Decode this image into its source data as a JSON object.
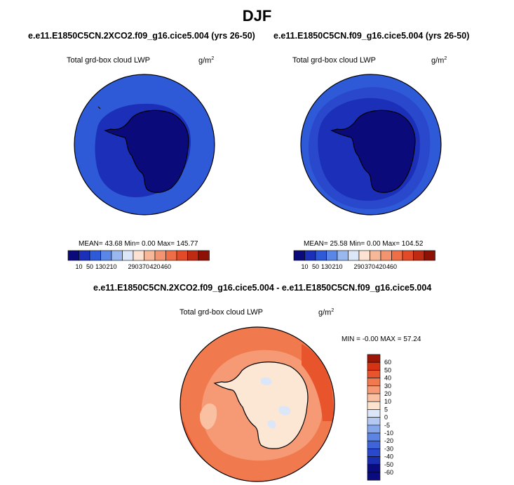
{
  "page": {
    "title": "DJF"
  },
  "colors": {
    "seq_palette": [
      "#0a0a7a",
      "#1c2fb8",
      "#2e5ad8",
      "#5a86e8",
      "#9ab8f0",
      "#dbe6f8",
      "#fbe2d2",
      "#f7b89a",
      "#f39470",
      "#ee6e48",
      "#e24a28",
      "#bf2a12",
      "#8e1106"
    ],
    "diff_palette": [
      "#0b0b80",
      "#1a2db0",
      "#2a48cc",
      "#3f64d8",
      "#5c84e2",
      "#86a6ea",
      "#b4c8f2",
      "#dbe6f8",
      "#fde2d0",
      "#f9c0a2",
      "#f59a74",
      "#f07a4e",
      "#e8542c",
      "#d43412",
      "#9c1608"
    ],
    "land": "#fbe6d6",
    "land_diff": "#fce6d4"
  },
  "chart_data": [
    {
      "type": "heatmap",
      "projection": "polar-stereographic",
      "title": "e.e11.E1850C5CN.2XCO2.f09_g16.cice5.004 (yrs 26-50)",
      "variable": "Total grd-box cloud LWP",
      "units": "g/m",
      "units_sup": "2",
      "stats_text": "MEAN=  43.68  Min=   0.00  Max= 145.77",
      "mean": 43.68,
      "min": 0.0,
      "max": 145.77,
      "colorbar": {
        "labels": [
          "10",
          "50",
          "130",
          "210",
          "290",
          "370",
          "420",
          "460"
        ],
        "orientation": "horizontal"
      }
    },
    {
      "type": "heatmap",
      "projection": "polar-stereographic",
      "title": "e.e11.E1850C5CN.f09_g16.cice5.004 (yrs 26-50)",
      "variable": "Total grd-box cloud LWP",
      "units": "g/m",
      "units_sup": "2",
      "stats_text": "MEAN=  25.58  Min=   0.00  Max= 104.52",
      "mean": 25.58,
      "min": 0.0,
      "max": 104.52,
      "colorbar": {
        "labels": [
          "10",
          "50",
          "130",
          "210",
          "290",
          "370",
          "420",
          "460"
        ],
        "orientation": "horizontal"
      }
    },
    {
      "type": "heatmap",
      "projection": "polar-stereographic",
      "title": "e.e11.E1850C5CN.2XCO2.f09_g16.cice5.004 - e.e11.E1850C5CN.f09_g16.cice5.004",
      "variable": "Total grd-box cloud LWP",
      "units": "g/m",
      "units_sup": "2",
      "stats_text": "MIN =  -0.00 MAX =  57.24",
      "min": -0.0,
      "max": 57.24,
      "colorbar": {
        "labels": [
          "60",
          "50",
          "40",
          "30",
          "20",
          "10",
          "5",
          "0",
          "-5",
          "-10",
          "-20",
          "-30",
          "-40",
          "-50",
          "-60"
        ],
        "orientation": "vertical"
      }
    }
  ]
}
